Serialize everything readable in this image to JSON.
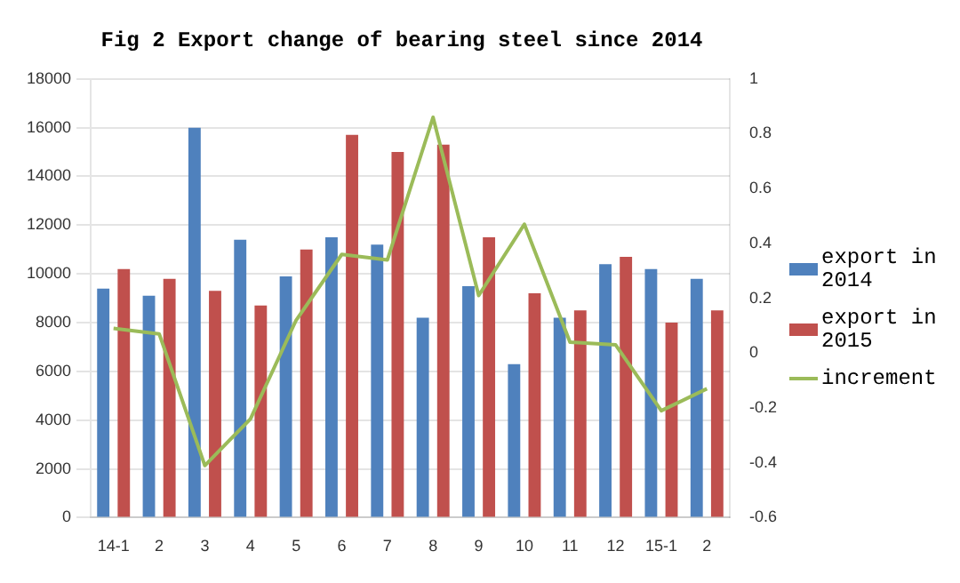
{
  "chart_data": {
    "type": "bar",
    "title": "Fig 2 Export change of bearing steel since 2014",
    "categories": [
      "14-1",
      "2",
      "3",
      "4",
      "5",
      "6",
      "7",
      "8",
      "9",
      "10",
      "11",
      "12",
      "15-1",
      "2"
    ],
    "series": [
      {
        "name": "export in 2014",
        "color": "#4f81bd",
        "values": [
          9400,
          9100,
          16000,
          11400,
          9900,
          11500,
          11200,
          8200,
          9500,
          6300,
          8200,
          10400,
          10200,
          9800
        ]
      },
      {
        "name": "export in 2015",
        "color": "#c0504d",
        "values": [
          10200,
          9800,
          9300,
          8700,
          11000,
          15700,
          15000,
          15300,
          11500,
          9200,
          8500,
          10700,
          8000,
          8500
        ]
      },
      {
        "name": "increment",
        "type": "line",
        "axis": "y2",
        "color": "#9bbb59",
        "values": [
          0.09,
          0.07,
          -0.41,
          -0.24,
          0.12,
          0.36,
          0.34,
          0.86,
          0.21,
          0.47,
          0.04,
          0.03,
          -0.21,
          -0.13
        ]
      }
    ],
    "ylim": [
      0,
      18000
    ],
    "yticks": [
      0,
      2000,
      4000,
      6000,
      8000,
      10000,
      12000,
      14000,
      16000,
      18000
    ],
    "y2lim": [
      -0.6,
      1
    ],
    "y2ticks": [
      -0.6,
      -0.4,
      -0.2,
      0,
      0.2,
      0.4,
      0.6,
      0.8,
      1
    ],
    "grid": "y",
    "legend": "right",
    "marker": "none"
  }
}
